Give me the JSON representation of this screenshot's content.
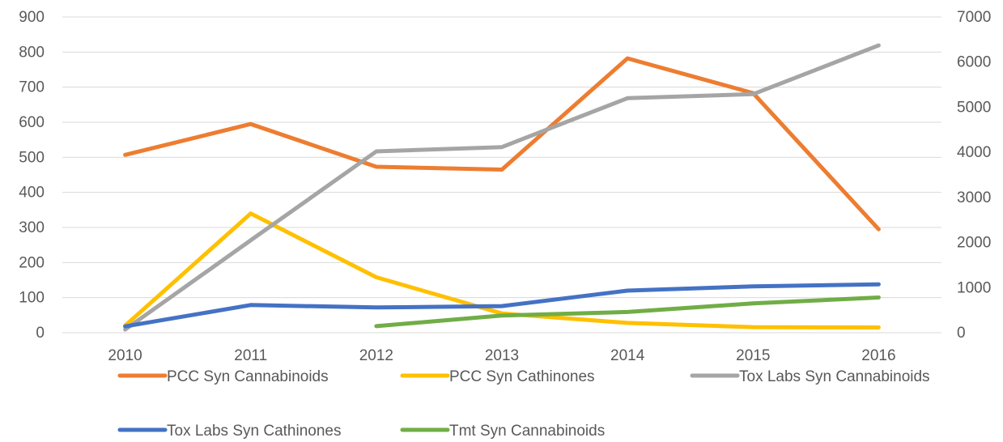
{
  "chart_data": {
    "type": "line",
    "title": "",
    "categories": [
      "2010",
      "2011",
      "2012",
      "2013",
      "2014",
      "2015",
      "2016"
    ],
    "y_left": {
      "ticks": [
        0,
        100,
        200,
        300,
        400,
        500,
        600,
        700,
        800,
        900
      ],
      "range": [
        0,
        900
      ]
    },
    "y_right": {
      "ticks": [
        0,
        1000,
        2000,
        3000,
        4000,
        5000,
        6000,
        7000
      ],
      "range": [
        0,
        7000
      ]
    },
    "grid": true,
    "legend_position": "bottom",
    "series": [
      {
        "name": "PCC Syn Cannabinoids",
        "axis": "left",
        "color": "#ed7d31",
        "values": [
          507,
          595,
          473,
          465,
          782,
          683,
          295
        ]
      },
      {
        "name": "PCC Syn Cathinones",
        "axis": "left",
        "color": "#ffc000",
        "values": [
          20,
          340,
          158,
          55,
          28,
          16,
          15
        ]
      },
      {
        "name": "Tox Labs Syn Cannabinoids",
        "axis": "right",
        "color": "#a5a5a5",
        "values": [
          70,
          2050,
          4020,
          4115,
          5200,
          5290,
          6370
        ]
      },
      {
        "name": "Tox Labs Syn Cathinones",
        "axis": "left",
        "color": "#4472c4",
        "values": [
          18,
          79,
          72,
          76,
          120,
          132,
          138
        ]
      },
      {
        "name": "Tmt Syn Cannabinoids",
        "axis": "right",
        "color": "#70ad47",
        "values": [
          null,
          null,
          145,
          380,
          460,
          650,
          780
        ]
      }
    ]
  }
}
